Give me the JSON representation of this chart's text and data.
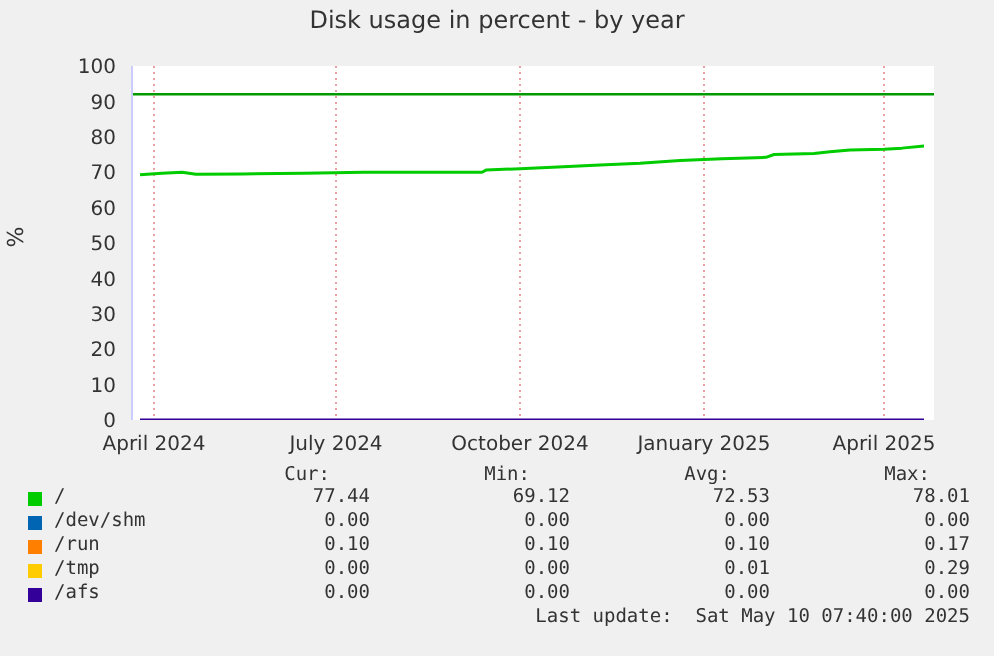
{
  "chart_data": {
    "type": "line",
    "title": "Disk usage in percent - by year",
    "ylabel": "%",
    "xlim": [
      "2024-03-21",
      "2025-04-26"
    ],
    "xticks": [
      {
        "value": "2024-04-01",
        "label": "April 2024"
      },
      {
        "value": "2024-07-01",
        "label": "July 2024"
      },
      {
        "value": "2024-10-01",
        "label": "October 2024"
      },
      {
        "value": "2025-01-01",
        "label": "January 2025"
      },
      {
        "value": "2025-04-01",
        "label": "April 2025"
      }
    ],
    "ylim": [
      0,
      100
    ],
    "yticks": [
      0,
      10,
      20,
      30,
      40,
      50,
      60,
      70,
      80,
      90,
      100
    ],
    "grid": true,
    "legend": "bottom",
    "marker": "none",
    "line_style": "solid",
    "ref_lines": [
      {
        "axis": "y",
        "value": 92,
        "color": "#009900"
      }
    ],
    "series": [
      {
        "name": "/",
        "color": "#00cc00",
        "x": [
          "2024-03-25",
          "2024-04-05",
          "2024-04-15",
          "2024-04-22",
          "2024-05-15",
          "2024-06-15",
          "2024-07-15",
          "2024-08-15",
          "2024-09-12",
          "2024-09-14",
          "2024-10-01",
          "2024-10-20",
          "2024-11-10",
          "2024-11-30",
          "2024-12-20",
          "2025-01-10",
          "2025-02-01",
          "2025-02-05",
          "2025-02-25",
          "2025-03-05",
          "2025-03-15",
          "2025-04-01",
          "2025-04-10",
          "2025-04-21"
        ],
        "values": [
          69.3,
          69.7,
          70.0,
          69.4,
          69.5,
          69.7,
          70.0,
          70.0,
          70.0,
          70.6,
          71.0,
          71.5,
          72.0,
          72.5,
          73.3,
          73.8,
          74.2,
          75.0,
          75.3,
          75.8,
          76.3,
          76.5,
          76.8,
          77.4
        ]
      },
      {
        "name": "/dev/shm",
        "color": "#0066b3"
      },
      {
        "name": "/run",
        "color": "#ff8000"
      },
      {
        "name": "/tmp",
        "color": "#ffcc00"
      },
      {
        "name": "/afs",
        "color": "#330099",
        "x": [
          "2024-03-25",
          "2025-04-21"
        ],
        "values": [
          0,
          0
        ]
      }
    ],
    "annotations": [
      "Cur:",
      "Min:",
      "Avg:",
      "Max:",
      "77.44",
      "69.12",
      "72.53",
      "78.01",
      "0.00",
      "0.00",
      "0.00",
      "0.00",
      "0.10",
      "0.10",
      "0.10",
      "0.17",
      "0.00",
      "0.00",
      "0.01",
      "0.29",
      "0.00",
      "0.00",
      "0.00",
      "0.00",
      "Last update:  Sat May 10 07:40:00 2025"
    ]
  }
}
